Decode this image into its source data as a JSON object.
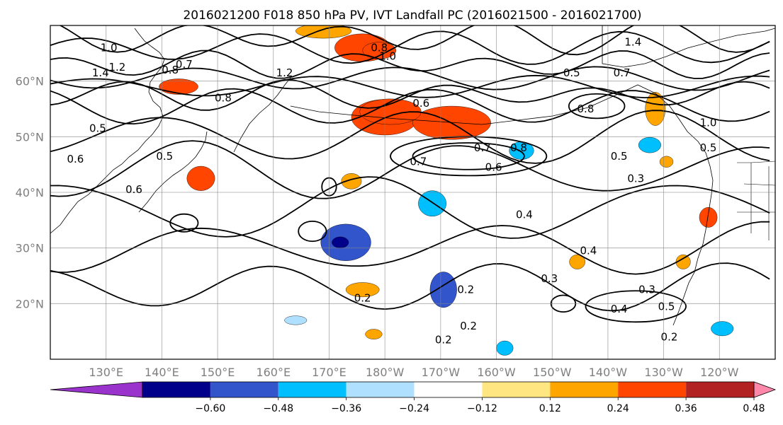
{
  "title": "2016021200 F018 850 hPa PV, IVT Landfall PC (2016021500 - 2016021700)",
  "chart_data": {
    "type": "heatmap",
    "projection": "PlateCarree",
    "extent": {
      "lon": [
        120,
        250
      ],
      "lat": [
        10,
        70
      ]
    },
    "grid": true,
    "lat_ticks": [
      {
        "value": 20,
        "label": "20°N"
      },
      {
        "value": 30,
        "label": "30°N"
      },
      {
        "value": 40,
        "label": "40°N"
      },
      {
        "value": 50,
        "label": "50°N"
      },
      {
        "value": 60,
        "label": "60°N"
      }
    ],
    "lon_ticks": [
      {
        "value": 130,
        "label": "130°E"
      },
      {
        "value": 140,
        "label": "140°E"
      },
      {
        "value": 150,
        "label": "150°E"
      },
      {
        "value": 160,
        "label": "160°E"
      },
      {
        "value": 170,
        "label": "170°E"
      },
      {
        "value": 180,
        "label": "180°W"
      },
      {
        "value": 190,
        "label": "170°W"
      },
      {
        "value": 200,
        "label": "160°W"
      },
      {
        "value": 210,
        "label": "150°W"
      },
      {
        "value": 220,
        "label": "140°W"
      },
      {
        "value": 230,
        "label": "130°W"
      },
      {
        "value": 240,
        "label": "120°W"
      }
    ],
    "colorbar": {
      "orientation": "horizontal",
      "extend": "both",
      "boundaries": [
        -0.72,
        -0.6,
        -0.48,
        -0.36,
        -0.24,
        -0.12,
        0.12,
        0.24,
        0.36,
        0.48,
        0.6,
        0.72
      ],
      "colors": [
        "#9933cc",
        "#00008b",
        "#3355cc",
        "#00bfff",
        "#b0e0ff",
        "#ffffff",
        "#ffe680",
        "#ffa500",
        "#ff4500",
        "#b22222",
        "#ff88aa"
      ],
      "tick_labels": [
        "−0.60",
        "−0.48",
        "−0.36",
        "−0.24",
        "−0.12",
        "0.12",
        "0.24",
        "0.36",
        "0.48",
        "0.60"
      ]
    },
    "shaded_regions": [
      {
        "lon": 173,
        "lat": 31,
        "rlon": 4.5,
        "rlat": 3.3,
        "value": -0.42
      },
      {
        "lon": 172,
        "lat": 31,
        "rlon": 1.5,
        "rlat": 1.0,
        "value": -0.55
      },
      {
        "lon": 188.5,
        "lat": 38,
        "rlon": 2.5,
        "rlat": 2.3,
        "value": -0.33
      },
      {
        "lon": 190.5,
        "lat": 22.5,
        "rlon": 2.4,
        "rlat": 3.2,
        "value": -0.4
      },
      {
        "lon": 204.5,
        "lat": 47.5,
        "rlon": 2.2,
        "rlat": 1.6,
        "value": -0.32
      },
      {
        "lon": 227.5,
        "lat": 48.5,
        "rlon": 2.0,
        "rlat": 1.4,
        "value": -0.27
      },
      {
        "lon": 240.5,
        "lat": 15.5,
        "rlon": 2.0,
        "rlat": 1.3,
        "value": -0.35
      },
      {
        "lon": 201.5,
        "lat": 12,
        "rlon": 1.5,
        "rlat": 1.3,
        "value": -0.3
      },
      {
        "lon": 164,
        "lat": 17,
        "rlon": 2.0,
        "rlat": 0.8,
        "value": -0.24
      },
      {
        "lon": 147,
        "lat": 42.5,
        "rlon": 2.5,
        "rlat": 2.2,
        "value": 0.42
      },
      {
        "lon": 180,
        "lat": 53.5,
        "rlon": 6.0,
        "rlat": 3.2,
        "value": 0.36
      },
      {
        "lon": 192,
        "lat": 52.5,
        "rlon": 7.0,
        "rlat": 3.0,
        "value": 0.36
      },
      {
        "lon": 181,
        "lat": 54.5,
        "rlon": 5.5,
        "rlat": 2.3,
        "value": 0.42
      },
      {
        "lon": 176,
        "lat": 66,
        "rlon": 5.0,
        "rlat": 2.5,
        "value": 0.36
      },
      {
        "lon": 179,
        "lat": 65.5,
        "rlon": 3.0,
        "rlat": 1.5,
        "value": 0.42
      },
      {
        "lon": 169,
        "lat": 69,
        "rlon": 5.0,
        "rlat": 1.3,
        "value": 0.28
      },
      {
        "lon": 143,
        "lat": 59,
        "rlon": 3.5,
        "rlat": 1.4,
        "value": 0.36
      },
      {
        "lon": 174,
        "lat": 42,
        "rlon": 1.8,
        "rlat": 1.4,
        "value": 0.26
      },
      {
        "lon": 176,
        "lat": 22.5,
        "rlon": 3.0,
        "rlat": 1.3,
        "value": 0.3
      },
      {
        "lon": 238,
        "lat": 35.5,
        "rlon": 1.6,
        "rlat": 1.8,
        "value": 0.36
      },
      {
        "lon": 233.5,
        "lat": 27.5,
        "rlon": 1.3,
        "rlat": 1.3,
        "value": 0.28
      },
      {
        "lon": 214.5,
        "lat": 27.5,
        "rlon": 1.4,
        "rlat": 1.3,
        "value": 0.27
      },
      {
        "lon": 230.5,
        "lat": 45.5,
        "rlon": 1.2,
        "rlat": 1.0,
        "value": 0.27
      },
      {
        "lon": 178,
        "lat": 14.5,
        "rlon": 1.5,
        "rlat": 0.9,
        "value": 0.26
      },
      {
        "lon": 228.5,
        "lat": 55,
        "rlon": 1.8,
        "rlat": 3.0,
        "value": 0.26
      }
    ],
    "contour_labels": [
      {
        "text": "1.0",
        "lon": 130.5,
        "lat": 66
      },
      {
        "text": "1.2",
        "lon": 132,
        "lat": 62.5
      },
      {
        "text": "1.4",
        "lon": 129,
        "lat": 61.5
      },
      {
        "text": "0.8",
        "lon": 141.5,
        "lat": 62
      },
      {
        "text": "0.7",
        "lon": 144,
        "lat": 63
      },
      {
        "text": "1.2",
        "lon": 162,
        "lat": 61.5
      },
      {
        "text": "0.8",
        "lon": 151,
        "lat": 57
      },
      {
        "text": "0.8",
        "lon": 179,
        "lat": 66
      },
      {
        "text": "1.0",
        "lon": 180.5,
        "lat": 64.5
      },
      {
        "text": "0.6",
        "lon": 186.5,
        "lat": 56
      },
      {
        "text": "0.5",
        "lon": 213.5,
        "lat": 61.5
      },
      {
        "text": "0.8",
        "lon": 216,
        "lat": 55
      },
      {
        "text": "1.4",
        "lon": 224.5,
        "lat": 67
      },
      {
        "text": "0.7",
        "lon": 222.5,
        "lat": 61.5
      },
      {
        "text": "1.0",
        "lon": 238,
        "lat": 52.5
      },
      {
        "text": "0.5",
        "lon": 238,
        "lat": 48
      },
      {
        "text": "0.5",
        "lon": 222,
        "lat": 46.5
      },
      {
        "text": "0.3",
        "lon": 225,
        "lat": 42.5
      },
      {
        "text": "0.7",
        "lon": 186,
        "lat": 45.5
      },
      {
        "text": "0.7",
        "lon": 197.5,
        "lat": 48
      },
      {
        "text": "0.6",
        "lon": 199.5,
        "lat": 44.5
      },
      {
        "text": "0.8",
        "lon": 204,
        "lat": 48
      },
      {
        "text": "0.5",
        "lon": 128.5,
        "lat": 51.5
      },
      {
        "text": "0.6",
        "lon": 124.5,
        "lat": 46
      },
      {
        "text": "0.5",
        "lon": 140.5,
        "lat": 46.5
      },
      {
        "text": "0.6",
        "lon": 135,
        "lat": 40.5
      },
      {
        "text": "0.4",
        "lon": 205,
        "lat": 36
      },
      {
        "text": "0.4",
        "lon": 216.5,
        "lat": 29.5
      },
      {
        "text": "0.3",
        "lon": 209.5,
        "lat": 24.5
      },
      {
        "text": "0.2",
        "lon": 176,
        "lat": 21
      },
      {
        "text": "0.2",
        "lon": 194.5,
        "lat": 22.5
      },
      {
        "text": "0.2",
        "lon": 195,
        "lat": 16
      },
      {
        "text": "0.2",
        "lon": 190.5,
        "lat": 13.5
      },
      {
        "text": "0.4",
        "lon": 222,
        "lat": 19
      },
      {
        "text": "0.3",
        "lon": 227,
        "lat": 22.5
      },
      {
        "text": "0.5",
        "lon": 230.5,
        "lat": 19.5
      },
      {
        "text": "0.2",
        "lon": 231,
        "lat": 14
      }
    ],
    "contour_levels": [
      0.2,
      0.3,
      0.4,
      0.5,
      0.6,
      0.7,
      0.8,
      1.0,
      1.2,
      1.4
    ]
  }
}
